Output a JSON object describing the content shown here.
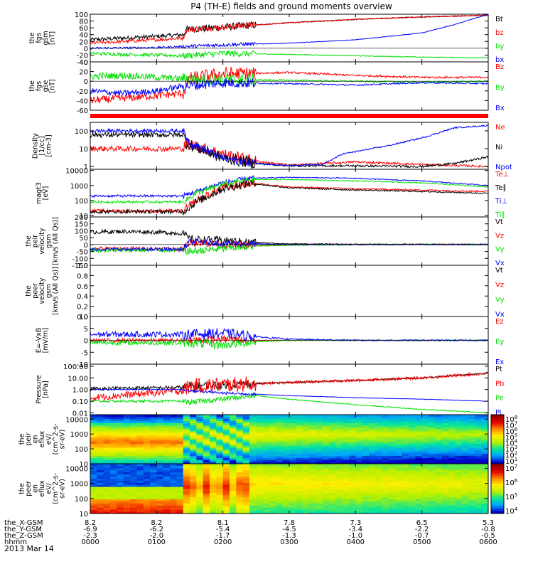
{
  "title": "P4 (TH-E) fields and ground moments overview",
  "date_label": "2013 Mar 14",
  "colors": {
    "black": "#000000",
    "red": "#ff0000",
    "green": "#00e000",
    "blue": "#0000ff",
    "bar": "#ff0000"
  },
  "chart_data": [
    {
      "id": "fgs_gsm",
      "type": "line",
      "ylabel_lines": [
        "the",
        "fgs",
        "gsm",
        "[nT]"
      ],
      "ylim": [
        -40,
        100
      ],
      "yticks": [
        -40,
        -20,
        0,
        20,
        40,
        60,
        80,
        100
      ],
      "series": [
        {
          "name": "Bt",
          "color": "black",
          "x": [
            0,
            0.5,
            1.0,
            1.4,
            1.45,
            2,
            3,
            4,
            5,
            6
          ],
          "y": [
            25,
            30,
            35,
            40,
            55,
            62,
            75,
            85,
            92,
            97
          ]
        },
        {
          "name": "bz",
          "color": "red",
          "x": [
            0,
            0.5,
            1.0,
            1.4,
            1.45,
            2,
            3,
            4,
            5,
            6
          ],
          "y": [
            15,
            20,
            25,
            30,
            55,
            62,
            75,
            85,
            92,
            97
          ]
        },
        {
          "name": "by",
          "color": "green",
          "x": [
            0,
            0.5,
            1.0,
            1.4,
            2,
            3,
            4,
            5,
            6
          ],
          "y": [
            -15,
            -18,
            -20,
            -22,
            -15,
            -18,
            -22,
            -26,
            -28
          ]
        },
        {
          "name": "bx",
          "color": "blue",
          "x": [
            0,
            1.0,
            1.4,
            2,
            3,
            4,
            5,
            5.5,
            6
          ],
          "y": [
            0,
            2,
            5,
            10,
            15,
            25,
            45,
            70,
            100
          ]
        }
      ]
    },
    {
      "id": "fgs_gse",
      "type": "line",
      "ylabel_lines": [
        "the",
        "fgs",
        "gse",
        "[nT]"
      ],
      "ylim": [
        -60,
        40
      ],
      "yticks": [
        -60,
        -40,
        -20,
        0,
        20,
        40
      ],
      "series": [
        {
          "name": "Bz",
          "color": "red",
          "x": [
            0,
            0.5,
            1.0,
            1.4,
            1.5,
            2,
            3,
            4,
            5,
            6
          ],
          "y": [
            -40,
            -35,
            -30,
            -25,
            5,
            15,
            18,
            12,
            8,
            8
          ]
        },
        {
          "name": "By",
          "color": "green",
          "x": [
            0,
            0.5,
            1.0,
            1.4,
            2,
            3,
            4,
            5,
            6
          ],
          "y": [
            10,
            12,
            8,
            5,
            3,
            2,
            0,
            -2,
            0
          ]
        },
        {
          "name": "Bx",
          "color": "blue",
          "x": [
            0,
            0.5,
            1.0,
            1.4,
            2,
            3,
            4,
            5,
            6
          ],
          "y": [
            -20,
            -25,
            -20,
            -10,
            -3,
            -5,
            -8,
            -3,
            -5
          ]
        }
      ]
    },
    {
      "id": "density",
      "type": "line",
      "scale": "log",
      "ylabel_lines": [
        "Density",
        "[1/cc]",
        "[cm-3]"
      ],
      "ylim": [
        0.7,
        300
      ],
      "yticks": [
        1,
        10,
        100
      ],
      "yticklabels": [
        "1",
        "10",
        "100"
      ],
      "series": [
        {
          "name": "Ne",
          "color": "red",
          "x": [
            0,
            1.4,
            1.45,
            2,
            2.5,
            3,
            4,
            5,
            6
          ],
          "y": [
            10,
            10,
            20,
            5,
            2,
            1.2,
            1.8,
            1.3,
            1
          ]
        },
        {
          "name": "Ni",
          "color": "black",
          "x": [
            0,
            1.4,
            1.45,
            2,
            2.5,
            3,
            4,
            5,
            5.5,
            6
          ],
          "y": [
            60,
            60,
            20,
            3,
            1.5,
            1.1,
            1.1,
            1,
            1.5,
            3.5
          ]
        },
        {
          "name": "Npot",
          "color": "blue",
          "x": [
            0,
            1.4,
            1.5,
            2,
            2.5,
            3,
            3.5,
            3.8,
            4.5,
            5,
            5.5,
            6
          ],
          "y": [
            100,
            100,
            20,
            3,
            1.5,
            1.1,
            1.3,
            5,
            15,
            40,
            150,
            200
          ]
        }
      ]
    },
    {
      "id": "temperature",
      "type": "line",
      "scale": "log",
      "ylabel_lines": [
        "magt3",
        "[eV]"
      ],
      "ylim": [
        8,
        12000
      ],
      "yticks": [
        10,
        100,
        1000,
        10000
      ],
      "yticklabels": [
        "10",
        "100",
        "1000",
        "10000"
      ],
      "series": [
        {
          "name": "Te⊥",
          "color": "red",
          "x": [
            0,
            1.4,
            1.6,
            2,
            2.4,
            3,
            4,
            5,
            6
          ],
          "y": [
            20,
            20,
            100,
            700,
            1500,
            800,
            600,
            500,
            400
          ]
        },
        {
          "name": "Te∥",
          "color": "black",
          "x": [
            0,
            1.4,
            1.6,
            2,
            2.4,
            3,
            4,
            5,
            6
          ],
          "y": [
            18,
            18,
            80,
            600,
            1400,
            700,
            500,
            400,
            300
          ]
        },
        {
          "name": "Ti⊥",
          "color": "blue",
          "x": [
            0,
            1.4,
            1.6,
            2,
            2.4,
            3,
            4,
            5,
            6
          ],
          "y": [
            200,
            200,
            400,
            1500,
            3000,
            3500,
            3000,
            2000,
            1000
          ]
        },
        {
          "name": "Ti∥",
          "color": "green",
          "x": [
            0,
            1.4,
            1.6,
            2,
            2.4,
            3,
            4,
            5,
            6
          ],
          "y": [
            80,
            80,
            300,
            1200,
            2500,
            2500,
            2000,
            1500,
            800
          ]
        }
      ]
    },
    {
      "id": "velocity_gsm",
      "type": "line",
      "ylabel_lines": [
        "the",
        "peir",
        "velocity",
        "gsm",
        "[km/s (All Qs)]"
      ],
      "ylim": [
        -150,
        200
      ],
      "yticks": [
        -150,
        -100,
        -50,
        0,
        50,
        100,
        150,
        200
      ],
      "series": [
        {
          "name": "Vt",
          "color": "black",
          "x": [
            0,
            0.5,
            1.0,
            1.4,
            1.5,
            2,
            2.5,
            3,
            4,
            5,
            6
          ],
          "y": [
            90,
            95,
            90,
            80,
            40,
            30,
            15,
            5,
            2,
            2,
            2
          ]
        },
        {
          "name": "Vz",
          "color": "red",
          "x": [
            0,
            1.4,
            1.5,
            2,
            2.5,
            3,
            4,
            6
          ],
          "y": [
            -30,
            -30,
            20,
            0,
            -10,
            0,
            0,
            0
          ]
        },
        {
          "name": "Vy",
          "color": "green",
          "x": [
            0,
            1.4,
            1.5,
            2,
            2.5,
            3,
            4,
            6
          ],
          "y": [
            -40,
            -40,
            -50,
            -30,
            -10,
            -5,
            0,
            0
          ]
        },
        {
          "name": "Vx",
          "color": "blue",
          "x": [
            0,
            1.4,
            1.5,
            2,
            2.5,
            3,
            4,
            6
          ],
          "y": [
            -35,
            -35,
            20,
            10,
            5,
            0,
            0,
            0
          ]
        }
      ]
    },
    {
      "id": "velocity_empty",
      "type": "line",
      "ylabel_lines": [
        "the",
        "peer",
        "velocity",
        "gsm",
        "[km/s (All Qs)]"
      ],
      "ylim": [
        0,
        1.0
      ],
      "yticks": [
        0,
        0.2,
        0.4,
        0.6,
        0.8,
        1.0
      ],
      "yticklabels": [
        "0.0",
        "0.2",
        "0.4",
        "0.6",
        "0.8",
        "1.0"
      ],
      "series": [
        {
          "name": "Vt",
          "color": "black",
          "x": [],
          "y": []
        },
        {
          "name": "Vz",
          "color": "red",
          "x": [],
          "y": []
        },
        {
          "name": "Vy",
          "color": "green",
          "x": [],
          "y": []
        },
        {
          "name": "Vx",
          "color": "blue",
          "x": [],
          "y": []
        }
      ]
    },
    {
      "id": "efield",
      "type": "line",
      "ylabel_lines": [
        "E=-VxB",
        "[mV/m]"
      ],
      "ylim": [
        -10,
        10
      ],
      "yticks": [
        -10,
        -5,
        0,
        5,
        10
      ],
      "series": [
        {
          "name": "Ez",
          "color": "red",
          "x": [
            0,
            1.4,
            2,
            2.5,
            3,
            4,
            5,
            6
          ],
          "y": [
            0,
            0,
            0.5,
            0,
            0,
            0,
            0,
            0
          ]
        },
        {
          "name": "Ey",
          "color": "green",
          "x": [
            0,
            1.4,
            2,
            2.5,
            3,
            4,
            5,
            6
          ],
          "y": [
            -1,
            -1,
            -2,
            -0.5,
            0,
            0,
            0,
            0
          ]
        },
        {
          "name": "Ex",
          "color": "blue",
          "x": [
            0,
            1.4,
            2,
            2.5,
            3,
            4,
            5,
            6
          ],
          "y": [
            2.5,
            2.5,
            3,
            1.5,
            0.5,
            0,
            0,
            0
          ]
        }
      ]
    },
    {
      "id": "pressure",
      "type": "line",
      "scale": "log",
      "ylabel_lines": [
        "Pressure",
        "[nPa]"
      ],
      "ylim": [
        0.007,
        150
      ],
      "yticks": [
        0.01,
        0.1,
        1,
        10,
        100
      ],
      "yticklabels": [
        "0.01",
        "0.10",
        "1.00",
        "10.00",
        "100.00"
      ],
      "series": [
        {
          "name": "Pt",
          "color": "black",
          "x": [
            0,
            1.4,
            1.5,
            2,
            3,
            4,
            5,
            6
          ],
          "y": [
            1.2,
            1.5,
            2,
            2.5,
            4,
            6,
            10,
            25
          ]
        },
        {
          "name": "Pb",
          "color": "red",
          "x": [
            0,
            1.4,
            1.5,
            2,
            3,
            4,
            5,
            6
          ],
          "y": [
            0.2,
            0.8,
            2,
            2.5,
            4,
            6,
            10,
            25
          ]
        },
        {
          "name": "Pe",
          "color": "green",
          "x": [
            0,
            1.4,
            1.5,
            2,
            2.5,
            3,
            4,
            5,
            6
          ],
          "y": [
            0.1,
            0.1,
            0.08,
            0.15,
            0.3,
            0.15,
            0.05,
            0.02,
            0.01
          ]
        },
        {
          "name": "Pi",
          "color": "blue",
          "x": [
            0,
            1.4,
            1.5,
            2,
            2.5,
            3,
            4,
            5,
            6
          ],
          "y": [
            1,
            1,
            0.8,
            0.5,
            0.4,
            0.3,
            0.2,
            0.15,
            0.1
          ]
        }
      ]
    },
    {
      "id": "ion_spec",
      "type": "heatmap",
      "ylabel_lines": [
        "the",
        "peir",
        "en",
        "eflux",
        "eV/",
        "(cm^2-s-",
        "sr-eV)"
      ],
      "ylim": [
        10,
        20000
      ],
      "yticks": [
        10,
        100,
        1000,
        10000
      ],
      "yticklabels": [
        "10",
        "100",
        "1000",
        "10000"
      ],
      "colorbar_labels": [
        "10^8",
        "10^7",
        "10^6",
        "10^5",
        "10^4",
        "10^3",
        "10^2",
        "10^1"
      ]
    },
    {
      "id": "elec_spec",
      "type": "heatmap",
      "ylabel_lines": [
        "the",
        "peer",
        "en",
        "eflux",
        "eV/",
        "(cm^2-s-",
        "sr-eV)"
      ],
      "ylim": [
        10,
        20000
      ],
      "yticks": [
        10,
        100,
        1000,
        10000
      ],
      "yticklabels": [
        "10",
        "100",
        "1000",
        "10000"
      ],
      "colorbar_labels": [
        "10^7",
        "10^6",
        "10^5",
        "10^4"
      ]
    }
  ],
  "x_axis": {
    "hours": [
      0,
      1,
      2,
      3,
      4,
      5,
      6
    ],
    "rows": [
      {
        "label": "the_X-GSM",
        "values": [
          "8.2",
          "8.2",
          "8.1",
          "7.8",
          "7.3",
          "6.5",
          "5.3"
        ]
      },
      {
        "label": "the_Y-GSM",
        "values": [
          "-6.9",
          "-6.2",
          "-5.4",
          "-4.5",
          "-3.4",
          "-2.2",
          "-0.8"
        ]
      },
      {
        "label": "the_Z-GSM",
        "values": [
          "-2.3",
          "-2.0",
          "-1.7",
          "-1.3",
          "-1.0",
          "-0.7",
          "-0.5"
        ]
      },
      {
        "label": "hhmm",
        "values": [
          "0000",
          "0100",
          "0200",
          "0300",
          "0400",
          "0500",
          "0600"
        ]
      }
    ]
  }
}
